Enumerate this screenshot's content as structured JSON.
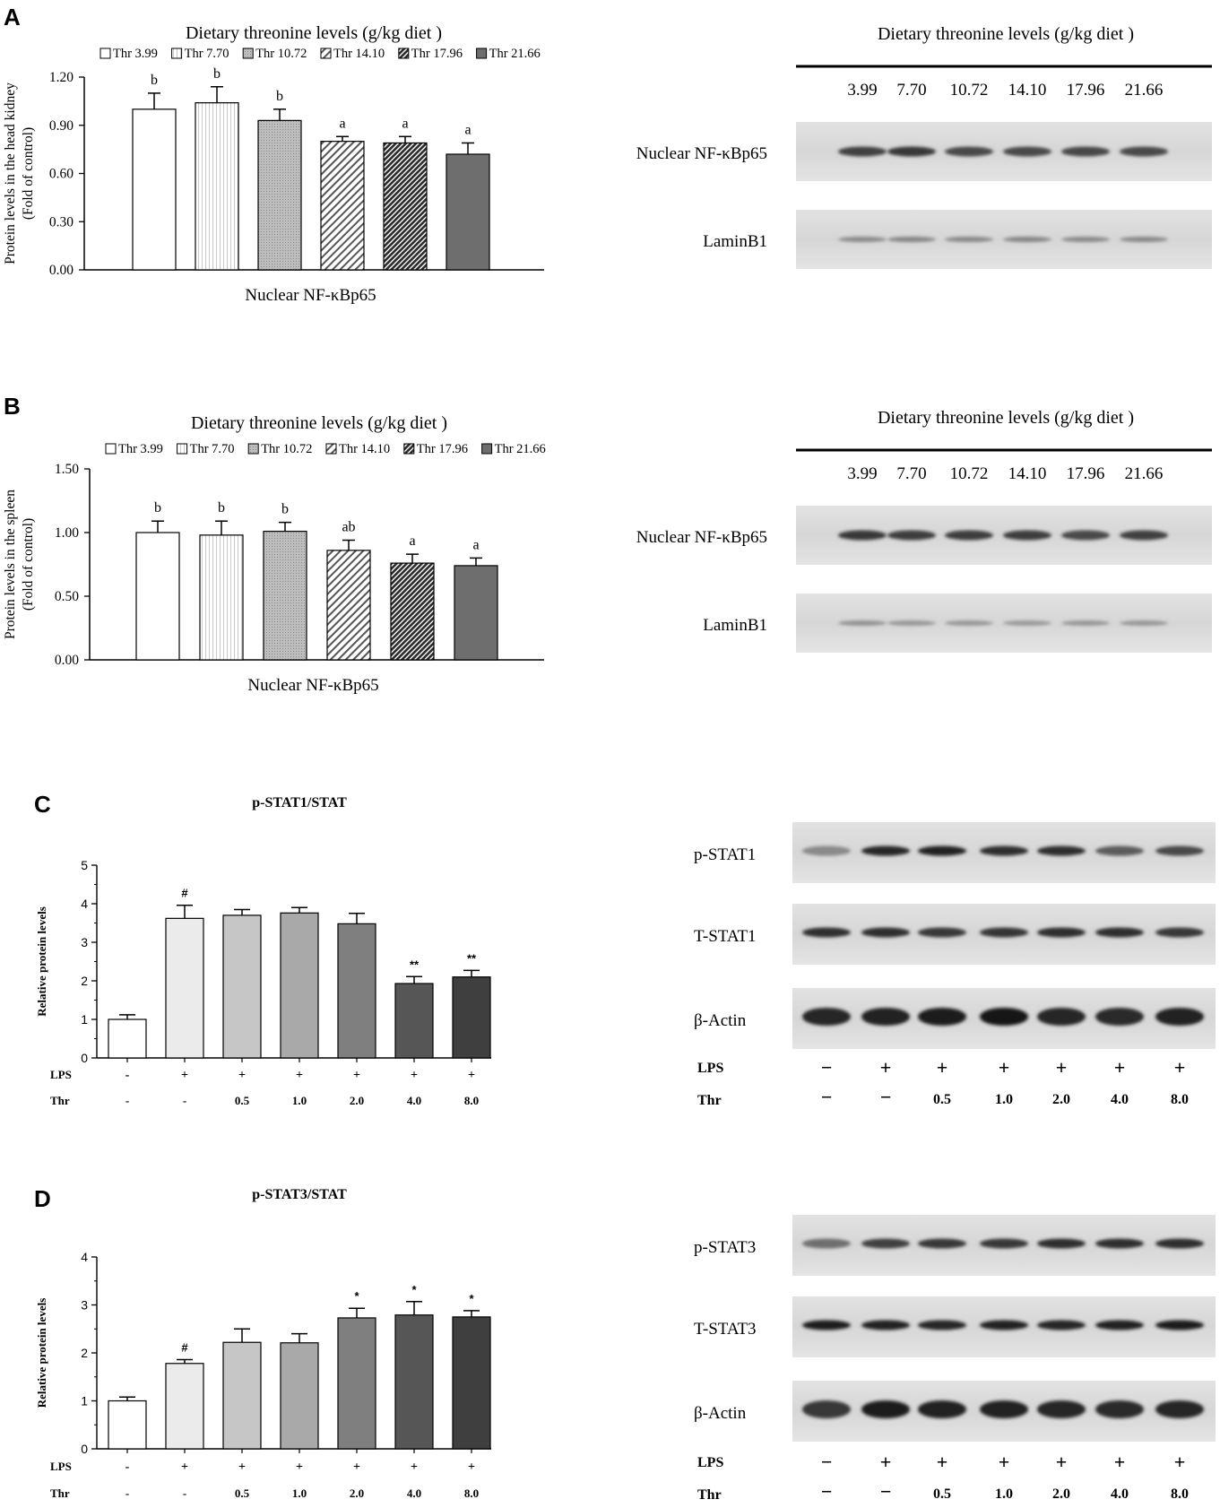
{
  "panels": {
    "A": {
      "label": "A",
      "blot_title": "Dietary threonine levels (g/kg diet )",
      "blot_lanes": [
        "3.99",
        "7.70",
        "10.72",
        "14.10",
        "17.96",
        "21.66"
      ],
      "blot_rows": [
        "Nuclear NF-κBp65",
        "LaminB1"
      ],
      "band_intensity": [
        [
          0.75,
          0.8,
          0.7,
          0.7,
          0.72,
          0.7
        ],
        [
          0.35,
          0.38,
          0.36,
          0.38,
          0.35,
          0.36
        ]
      ]
    },
    "B": {
      "label": "B",
      "blot_title": "Dietary threonine levels (g/kg diet )",
      "blot_lanes": [
        "3.99",
        "7.70",
        "10.72",
        "14.10",
        "17.96",
        "21.66"
      ],
      "blot_rows": [
        "Nuclear NF-κBp65",
        "LaminB1"
      ],
      "band_intensity": [
        [
          0.8,
          0.78,
          0.78,
          0.78,
          0.7,
          0.75
        ],
        [
          0.3,
          0.28,
          0.28,
          0.26,
          0.28,
          0.28
        ]
      ]
    },
    "C": {
      "label": "C",
      "blot_rows": [
        "p-STAT1",
        "T-STAT1",
        "β-Actin"
      ],
      "blot_lps": [
        "−",
        "+",
        "+",
        "+",
        "+",
        "+",
        "+"
      ],
      "blot_thr": [
        "−",
        "−",
        "0.5",
        "1.0",
        "2.0",
        "4.0",
        "8.0"
      ],
      "lps_label": "LPS",
      "thr_label": "Thr",
      "band_intensity": [
        [
          0.35,
          0.9,
          0.92,
          0.85,
          0.85,
          0.6,
          0.7
        ],
        [
          0.85,
          0.85,
          0.8,
          0.82,
          0.85,
          0.85,
          0.8
        ],
        [
          0.9,
          0.92,
          0.95,
          0.98,
          0.9,
          0.88,
          0.92
        ]
      ]
    },
    "D": {
      "label": "D",
      "blot_rows": [
        "p-STAT3",
        "T-STAT3",
        "β-Actin"
      ],
      "blot_lps": [
        "−",
        "+",
        "+",
        "+",
        "+",
        "+",
        "+"
      ],
      "blot_thr": [
        "−",
        "−",
        "0.5",
        "1.0",
        "2.0",
        "4.0",
        "8.0"
      ],
      "lps_label": "LPS",
      "thr_label": "Thr",
      "band_intensity": [
        [
          0.5,
          0.75,
          0.8,
          0.8,
          0.85,
          0.85,
          0.85
        ],
        [
          0.95,
          0.92,
          0.9,
          0.92,
          0.9,
          0.92,
          0.95
        ],
        [
          0.8,
          0.95,
          0.92,
          0.92,
          0.9,
          0.88,
          0.9
        ]
      ]
    }
  },
  "chart_data": [
    {
      "id": "A",
      "type": "bar",
      "title": "Dietary threonine levels (g/kg diet )",
      "categories": [
        "Thr 3.99",
        "Thr 7.70",
        "Thr 10.72",
        "Thr 14.10",
        "Thr 17.96",
        "Thr 21.66"
      ],
      "values": [
        1.0,
        1.04,
        0.93,
        0.8,
        0.79,
        0.72
      ],
      "errors": [
        0.1,
        0.1,
        0.07,
        0.03,
        0.04,
        0.07
      ],
      "sig": [
        "b",
        "b",
        "b",
        "a",
        "a",
        "a"
      ],
      "xlabel": "Nuclear NF-κBp65",
      "ylabel": [
        "Protein levels in the head kidney",
        "(Fold of control)"
      ],
      "ylim": [
        0,
        1.2
      ],
      "yticks": [
        "0.00",
        "0.30",
        "0.60",
        "0.90",
        "1.20"
      ],
      "legend": [
        "Thr 3.99",
        "Thr 7.70",
        "Thr 10.72",
        "Thr 14.10",
        "Thr 17.96",
        "Thr 21.66"
      ]
    },
    {
      "id": "B",
      "type": "bar",
      "title": "Dietary threonine levels (g/kg diet )",
      "categories": [
        "Thr 3.99",
        "Thr 7.70",
        "Thr 10.72",
        "Thr 14.10",
        "Thr 17.96",
        "Thr 21.66"
      ],
      "values": [
        1.0,
        0.98,
        1.01,
        0.86,
        0.76,
        0.74
      ],
      "errors": [
        0.09,
        0.11,
        0.07,
        0.08,
        0.07,
        0.06
      ],
      "sig": [
        "b",
        "b",
        "b",
        "ab",
        "a",
        "a"
      ],
      "xlabel": "Nuclear NF-κBp65",
      "ylabel": [
        "Protein levels in the spleen",
        "(Fold of control)"
      ],
      "ylim": [
        0,
        1.5
      ],
      "yticks": [
        "0.00",
        "0.50",
        "1.00",
        "1.50"
      ],
      "legend": [
        "Thr 3.99",
        "Thr 7.70",
        "Thr 10.72",
        "Thr 14.10",
        "Thr 17.96",
        "Thr 21.66"
      ]
    },
    {
      "id": "C",
      "type": "bar",
      "title": "p-STAT1/STAT",
      "ylabel": "Relative protein levels",
      "values": [
        1.0,
        3.62,
        3.7,
        3.76,
        3.48,
        1.93,
        2.1
      ],
      "errors": [
        0.12,
        0.34,
        0.15,
        0.14,
        0.27,
        0.18,
        0.17
      ],
      "sig": [
        "",
        "#",
        "",
        "",
        "",
        "**",
        "**"
      ],
      "lps": [
        "-",
        "+",
        "+",
        "+",
        "+",
        "+",
        "+"
      ],
      "thr": [
        "-",
        "-",
        "0.5",
        "1.0",
        "2.0",
        "4.0",
        "8.0"
      ],
      "lps_label": "LPS",
      "thr_label": "Thr",
      "ylim": [
        0,
        5
      ],
      "yticks": [
        "0",
        "1",
        "2",
        "3",
        "4",
        "5"
      ]
    },
    {
      "id": "D",
      "type": "bar",
      "title": "p-STAT3/STAT",
      "ylabel": "Relative protein levels",
      "values": [
        1.0,
        1.78,
        2.22,
        2.21,
        2.73,
        2.79,
        2.75
      ],
      "errors": [
        0.08,
        0.08,
        0.28,
        0.19,
        0.2,
        0.28,
        0.13
      ],
      "sig": [
        "",
        "#",
        "",
        "",
        "*",
        "*",
        "*"
      ],
      "lps": [
        "-",
        "+",
        "+",
        "+",
        "+",
        "+",
        "+"
      ],
      "thr": [
        "-",
        "-",
        "0.5",
        "1.0",
        "2.0",
        "4.0",
        "8.0"
      ],
      "lps_label": "LPS",
      "thr_label": "Thr",
      "ylim": [
        0,
        4
      ],
      "yticks": [
        "0",
        "1",
        "2",
        "3",
        "4"
      ]
    }
  ]
}
